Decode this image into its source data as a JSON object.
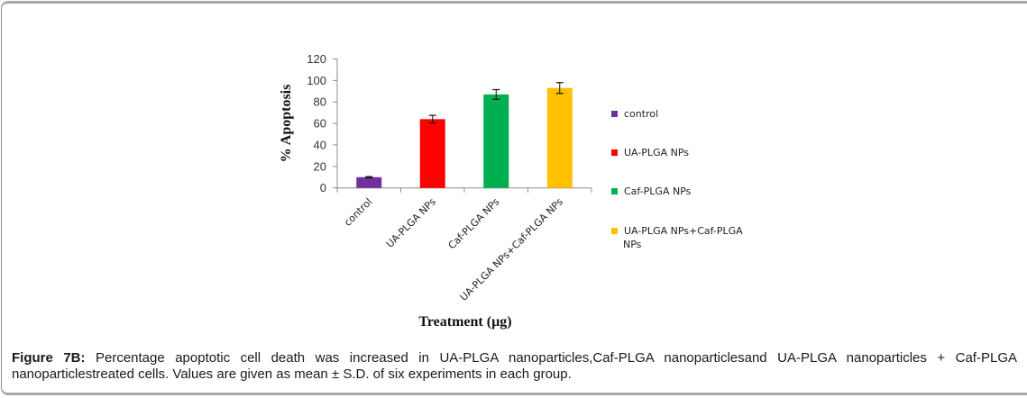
{
  "chart_data": {
    "type": "bar",
    "title": "",
    "xlabel": "Treatment (µg)",
    "ylabel": "% Apoptosis",
    "ylim": [
      0,
      120
    ],
    "yticks": [
      0,
      20,
      40,
      60,
      80,
      100,
      120
    ],
    "ytick_labels": [
      "0",
      "20",
      "40",
      "60",
      "80",
      "100",
      "120"
    ],
    "categories": [
      "control",
      "UA-PLGA NPs",
      "Caf-PLGA NPs",
      "UA-PLGA NPs+Caf-PLGA NPs"
    ],
    "values": [
      10,
      64,
      87,
      93
    ],
    "errors": [
      0.5,
      3.5,
      4.5,
      5
    ],
    "colors": [
      "#7030A0",
      "#FF0000",
      "#00B050",
      "#FFC000"
    ],
    "grid": false,
    "legend": {
      "placement": "right",
      "entries": [
        {
          "label": "control",
          "color": "#7030A0"
        },
        {
          "label": "UA-PLGA NPs",
          "color": "#FF0000"
        },
        {
          "label": "Caf-PLGA NPs",
          "color": "#00B050"
        },
        {
          "label_lines": [
            "UA-PLGA NPs+Caf-PLGA",
            "NPs"
          ],
          "color": "#FFC000"
        }
      ]
    }
  },
  "caption": {
    "label": "Figure 7B:",
    "text": " Percentage apoptotic cell death was increased in UA-PLGA nanoparticles,Caf-PLGA nanoparticlesand UA-PLGA nanoparticles + Caf-PLGA nanoparticlestreated cells. Values are given as mean ± S.D. of six experiments in each group."
  }
}
